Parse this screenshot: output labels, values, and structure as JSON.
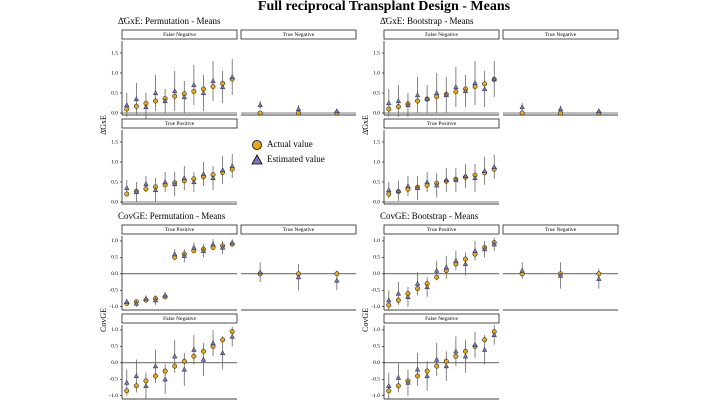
{
  "title": "Full reciprocal Transplant Design - Means",
  "legend": [
    {
      "name": "Actual value",
      "color": "#e6a817"
    },
    {
      "name": "Estimated value",
      "color": "#7b78b8"
    }
  ],
  "chart_data": [
    {
      "type": "scatter",
      "title": "Δ̄GxE: Permutation - Means",
      "y_label": "Δ̄GxE",
      "ylim": [
        -0.05,
        1.8
      ],
      "yticks": [
        {
          "value": 0,
          "label": "0.0"
        },
        {
          "value": 0.5,
          "label": "0.5"
        },
        {
          "value": 1,
          "label": "1.0"
        },
        {
          "value": 1.5,
          "label": "1.5"
        }
      ],
      "facets": [
        {
          "label": "False Negative",
          "actual": [
            0.1,
            0.17,
            0.24,
            0.3,
            0.36,
            0.42,
            0.48,
            0.54,
            0.6,
            0.66,
            0.74,
            0.85
          ],
          "estimated": [
            0.2,
            0.35,
            0.15,
            0.5,
            0.3,
            0.55,
            0.4,
            0.7,
            0.5,
            0.8,
            0.65,
            0.9
          ],
          "error": [
            0.3,
            0.4,
            0.35,
            0.45,
            0.3,
            0.5,
            0.4,
            0.5,
            0.45,
            0.5,
            0.4,
            0.45
          ]
        },
        {
          "label": "True Negative",
          "actual": [
            0,
            0,
            0
          ],
          "estimated": [
            0.2,
            0.1,
            0.05
          ],
          "error": [
            0.1,
            0.1,
            0.05
          ]
        },
        {
          "label": "True Positive",
          "actual": [
            0.2,
            0.27,
            0.33,
            0.38,
            0.43,
            0.48,
            0.53,
            0.58,
            0.63,
            0.68,
            0.74,
            0.82
          ],
          "estimated": [
            0.35,
            0.25,
            0.45,
            0.3,
            0.5,
            0.45,
            0.6,
            0.5,
            0.7,
            0.6,
            0.8,
            0.9
          ],
          "error": [
            0.2,
            0.25,
            0.2,
            0.3,
            0.25,
            0.3,
            0.3,
            0.25,
            0.3,
            0.3,
            0.35,
            0.3
          ]
        }
      ]
    },
    {
      "type": "scatter",
      "title": "Δ̄GxE: Bootstrap - Means",
      "y_label": "Δ̄GxE",
      "ylim": [
        -0.05,
        1.8
      ],
      "yticks": [
        {
          "value": 0,
          "label": "0.0"
        },
        {
          "value": 0.5,
          "label": "0.5"
        },
        {
          "value": 1,
          "label": "1.0"
        },
        {
          "value": 1.5,
          "label": "1.5"
        }
      ],
      "facets": [
        {
          "label": "False Negative",
          "actual": [
            0.1,
            0.16,
            0.23,
            0.3,
            0.35,
            0.41,
            0.47,
            0.53,
            0.6,
            0.66,
            0.73,
            0.84
          ],
          "estimated": [
            0.25,
            0.3,
            0.2,
            0.45,
            0.35,
            0.5,
            0.45,
            0.65,
            0.55,
            0.75,
            0.6,
            0.85
          ],
          "error": [
            0.35,
            0.4,
            0.3,
            0.45,
            0.35,
            0.5,
            0.45,
            0.5,
            0.4,
            0.55,
            0.45,
            0.45
          ]
        },
        {
          "label": "True Negative",
          "actual": [
            0,
            0,
            0
          ],
          "estimated": [
            0.15,
            0.1,
            0.05
          ],
          "error": [
            0.1,
            0.08,
            0.05
          ]
        },
        {
          "label": "True Positive",
          "actual": [
            0.2,
            0.26,
            0.32,
            0.37,
            0.42,
            0.47,
            0.52,
            0.57,
            0.62,
            0.67,
            0.73,
            0.82
          ],
          "estimated": [
            0.3,
            0.28,
            0.4,
            0.35,
            0.5,
            0.42,
            0.55,
            0.55,
            0.65,
            0.6,
            0.78,
            0.88
          ],
          "error": [
            0.2,
            0.25,
            0.25,
            0.3,
            0.25,
            0.3,
            0.3,
            0.3,
            0.3,
            0.35,
            0.35,
            0.3
          ]
        }
      ]
    },
    {
      "type": "scatter",
      "title": "CovGE: Permutation - Means",
      "y_label": "CovGE",
      "ylim": [
        -1.1,
        1.15
      ],
      "yticks": [
        {
          "value": -1,
          "label": "-1.0"
        },
        {
          "value": -0.5,
          "label": "-0.5"
        },
        {
          "value": 0,
          "label": "0.0"
        },
        {
          "value": 0.5,
          "label": "0.5"
        },
        {
          "value": 1,
          "label": "1.0"
        }
      ],
      "facets": [
        {
          "label": "True Positive",
          "actual": [
            -0.9,
            -0.85,
            -0.8,
            -0.75,
            -0.7,
            0.5,
            0.6,
            0.7,
            0.75,
            0.8,
            0.85,
            0.9
          ],
          "estimated": [
            -0.85,
            -0.9,
            -0.75,
            -0.8,
            -0.65,
            0.6,
            0.55,
            0.8,
            0.7,
            0.9,
            0.8,
            0.95
          ],
          "error": [
            0.1,
            0.1,
            0.1,
            0.15,
            0.1,
            0.15,
            0.2,
            0.15,
            0.2,
            0.15,
            0.2,
            0.1
          ]
        },
        {
          "label": "True Negative",
          "actual": [
            0,
            0,
            0
          ],
          "estimated": [
            0.05,
            -0.1,
            -0.2
          ],
          "error": [
            0.3,
            0.4,
            0.3
          ]
        },
        {
          "label": "False Negative",
          "actual": [
            -0.85,
            -0.7,
            -0.55,
            -0.4,
            -0.25,
            -0.1,
            0.05,
            0.2,
            0.35,
            0.5,
            0.7,
            0.95
          ],
          "estimated": [
            -0.6,
            -0.4,
            -0.7,
            -0.1,
            -0.5,
            0.2,
            -0.2,
            0.4,
            0.1,
            0.6,
            0.3,
            0.8
          ],
          "error": [
            0.4,
            0.5,
            0.4,
            0.5,
            0.45,
            0.5,
            0.5,
            0.45,
            0.5,
            0.4,
            0.5,
            0.3
          ]
        }
      ]
    },
    {
      "type": "scatter",
      "title": "CovGE: Bootstrap - Means",
      "y_label": "CovGE",
      "ylim": [
        -1.1,
        1.15
      ],
      "yticks": [
        {
          "value": -1,
          "label": "-1.0"
        },
        {
          "value": -0.5,
          "label": "-0.5"
        },
        {
          "value": 0,
          "label": "0.0"
        },
        {
          "value": 0.5,
          "label": "0.5"
        },
        {
          "value": 1,
          "label": "1.0"
        }
      ],
      "facets": [
        {
          "label": "True Positive",
          "actual": [
            -0.95,
            -0.8,
            -0.6,
            -0.45,
            -0.3,
            -0.1,
            0.1,
            0.3,
            0.45,
            0.6,
            0.8,
            0.95
          ],
          "estimated": [
            -0.8,
            -0.6,
            -0.7,
            -0.3,
            -0.4,
            0.1,
            0.2,
            0.4,
            0.3,
            0.7,
            0.75,
            0.9
          ],
          "error": [
            0.3,
            0.35,
            0.3,
            0.35,
            0.3,
            0.3,
            0.35,
            0.3,
            0.35,
            0.3,
            0.25,
            0.2
          ]
        },
        {
          "label": "True Negative",
          "actual": [
            0,
            0,
            0
          ],
          "estimated": [
            0.1,
            -0.05,
            -0.15
          ],
          "error": [
            0.25,
            0.4,
            0.3
          ]
        },
        {
          "label": "False Negative",
          "actual": [
            -0.85,
            -0.7,
            -0.55,
            -0.4,
            -0.25,
            -0.1,
            0.05,
            0.2,
            0.35,
            0.5,
            0.7,
            0.95
          ],
          "estimated": [
            -0.7,
            -0.45,
            -0.6,
            -0.2,
            -0.4,
            0.1,
            -0.1,
            0.35,
            0.2,
            0.55,
            0.4,
            0.85
          ],
          "error": [
            0.4,
            0.45,
            0.4,
            0.5,
            0.45,
            0.5,
            0.45,
            0.45,
            0.5,
            0.4,
            0.45,
            0.3
          ]
        }
      ]
    }
  ]
}
